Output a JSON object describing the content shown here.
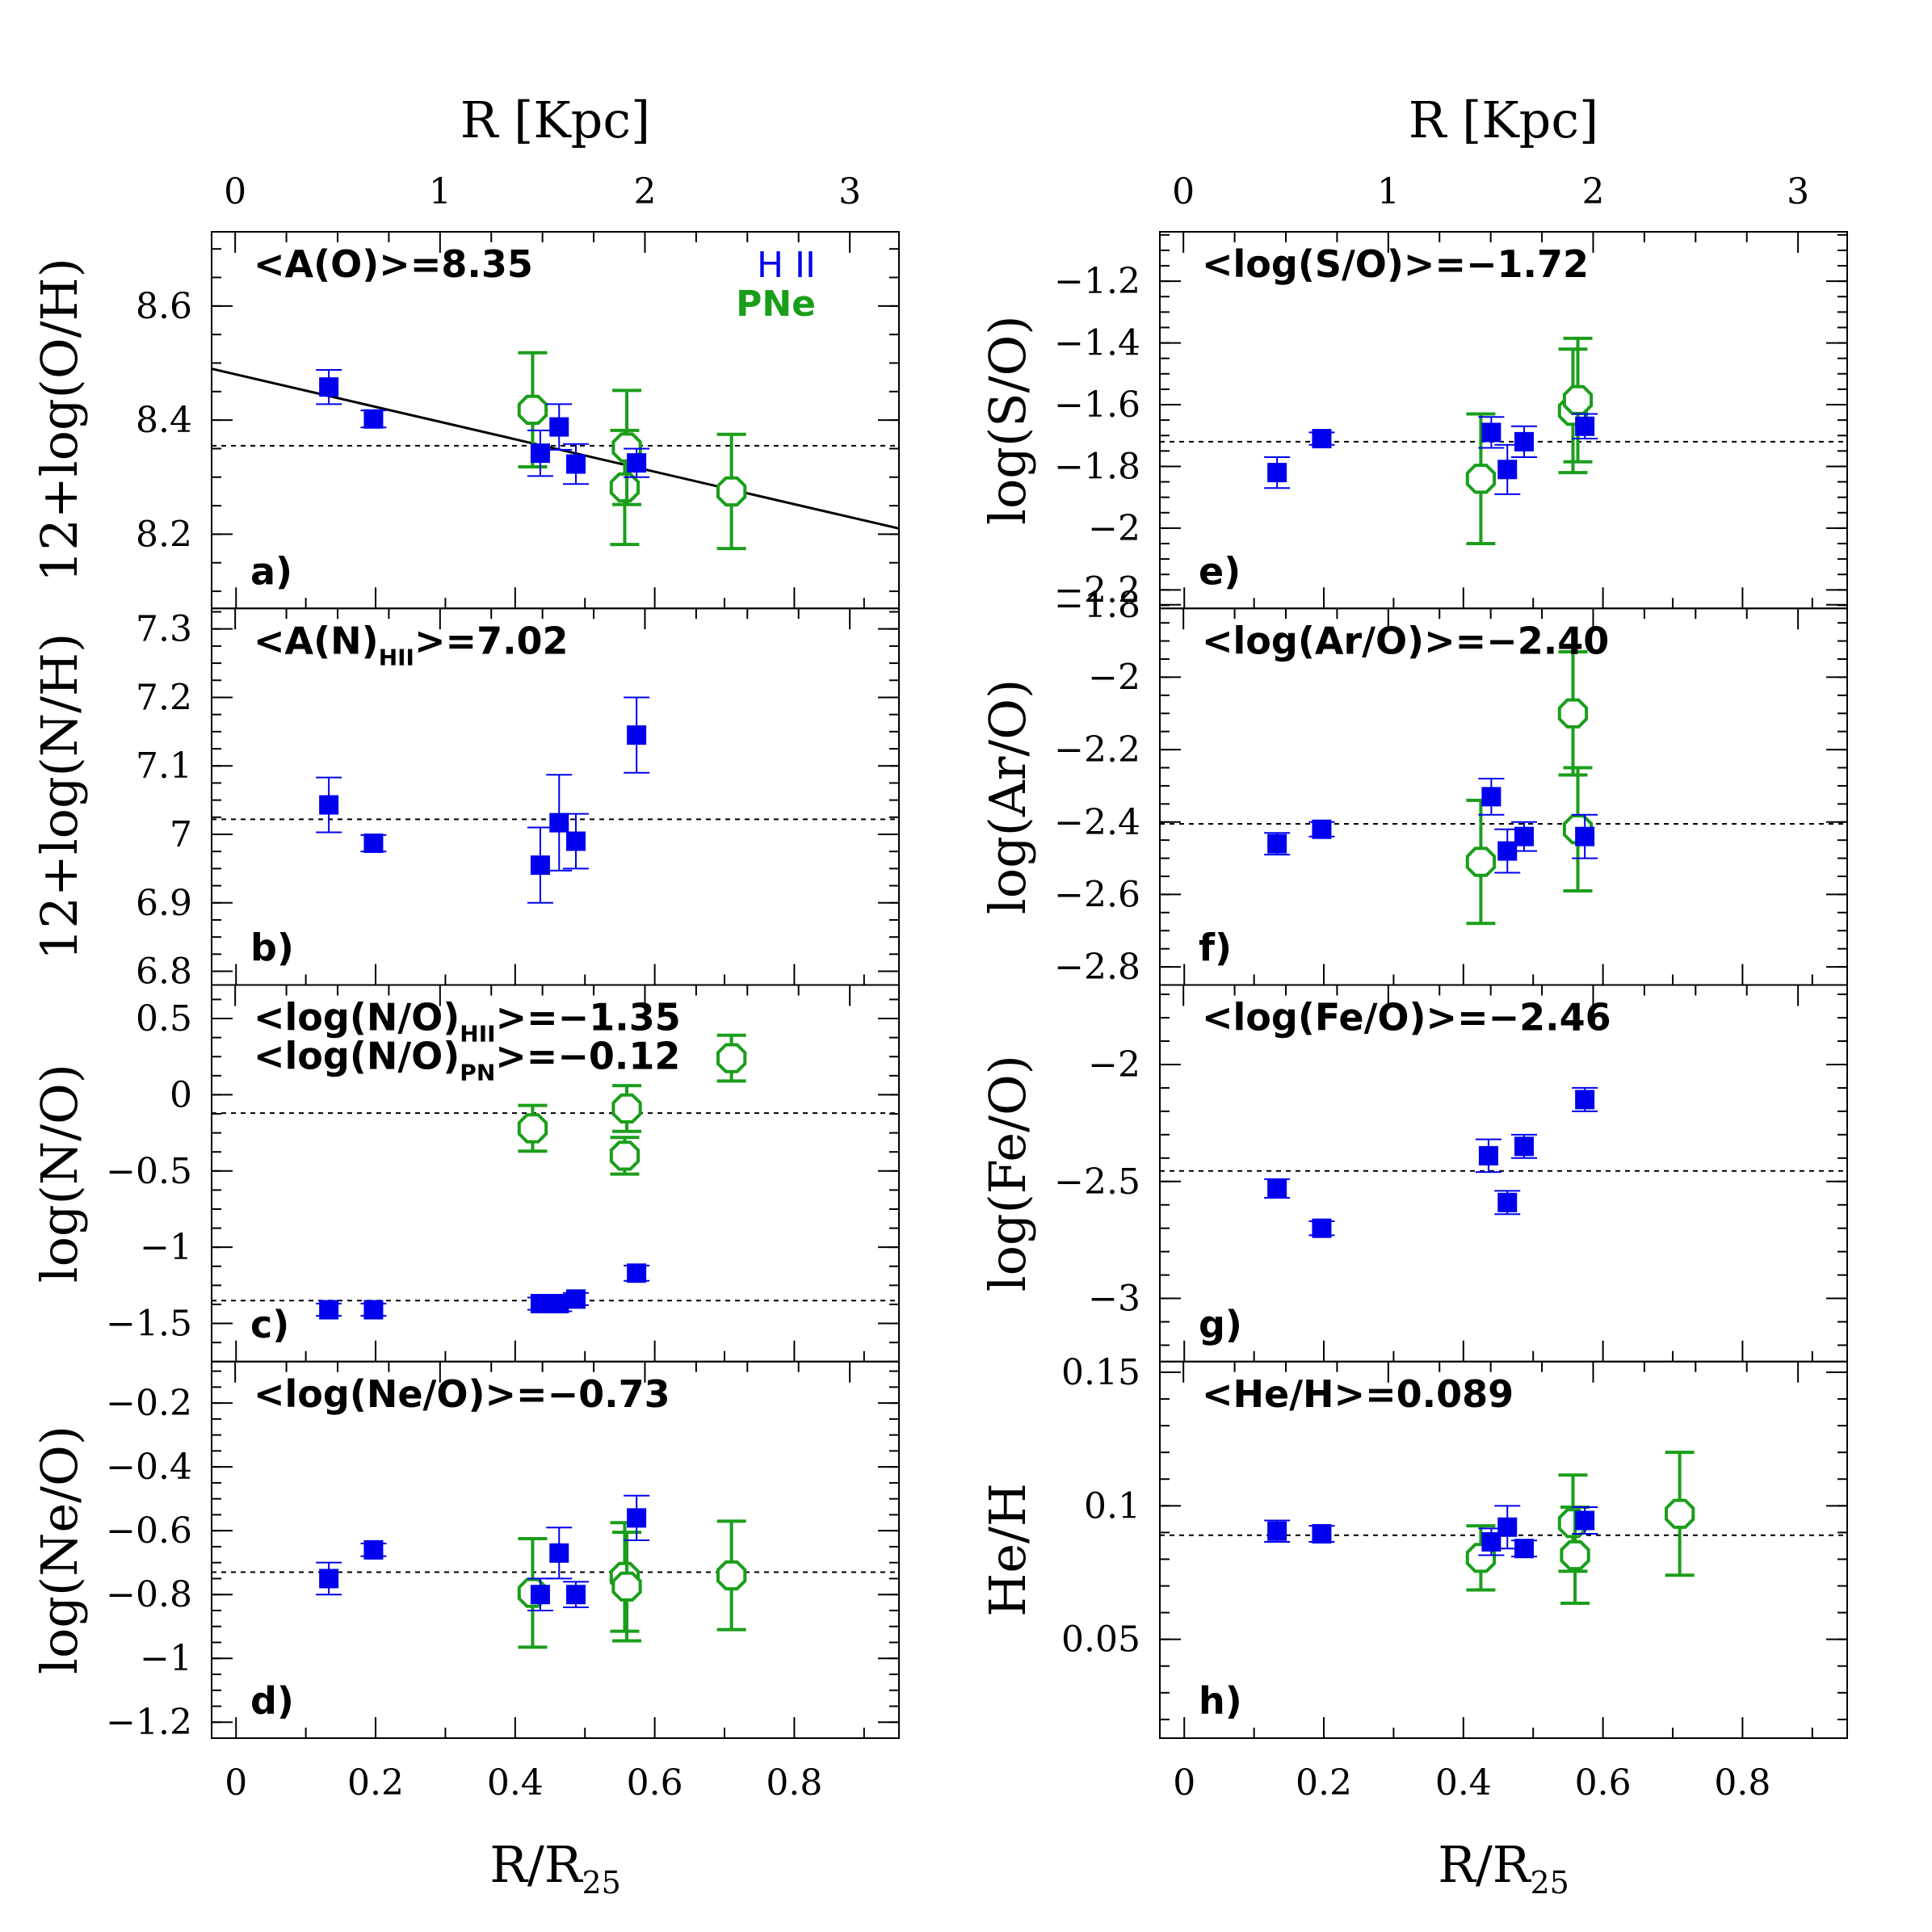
{
  "colors": {
    "hii": "#0000ee",
    "pne": "#1a9e1a",
    "axis": "#000000"
  },
  "chart_data": {
    "type": "scatter",
    "columns": [
      {
        "id": "left",
        "top_axis": {
          "title": "R [Kpc]",
          "ticks": [
            "0",
            "1",
            "2",
            "3"
          ],
          "values": [
            0,
            1,
            2,
            3
          ],
          "xlim": [
            -0.115,
            3.24
          ]
        },
        "bottom_axis": {
          "title_main": "R/R",
          "title_sub": "25",
          "ticks": [
            "0",
            "0.2",
            "0.4",
            "0.6",
            "0.8"
          ],
          "values": [
            0,
            0.2,
            0.4,
            0.6,
            0.8
          ],
          "xlim": [
            -0.035,
            0.95
          ]
        },
        "panels": [
          {
            "id": "a",
            "letter": "a)",
            "ylabel": "12+log(O/H)",
            "ylim": [
              8.07,
              8.73
            ],
            "ticks": [
              "8.2",
              "8.4",
              "8.6"
            ],
            "tick_values": [
              8.2,
              8.4,
              8.6
            ],
            "minor_step": 0.05,
            "annotation": {
              "lines": [
                {
                  "main": "<A(O)>=8.35"
                }
              ]
            },
            "legend": {
              "hii": "H II",
              "pne": "PNe"
            },
            "ref_lines": [
              8.355
            ],
            "fit_line": {
              "x": [
                -0.035,
                0.95
              ],
              "y": [
                8.49,
                8.21
              ]
            },
            "hii": [
              {
                "x": 0.133,
                "y": 8.458,
                "err": 0.03
              },
              {
                "x": 0.197,
                "y": 8.402,
                "err": 0.015
              },
              {
                "x": 0.436,
                "y": 8.342,
                "err": 0.04
              },
              {
                "x": 0.463,
                "y": 8.388,
                "err": 0.04
              },
              {
                "x": 0.487,
                "y": 8.323,
                "err": 0.035
              },
              {
                "x": 0.574,
                "y": 8.325,
                "err": 0.025
              }
            ],
            "pne": [
              {
                "x": 0.425,
                "y": 8.418,
                "err": 0.1
              },
              {
                "x": 0.557,
                "y": 8.282,
                "err": 0.1
              },
              {
                "x": 0.56,
                "y": 8.352,
                "err": 0.1
              },
              {
                "x": 0.71,
                "y": 8.275,
                "err": 0.1
              }
            ]
          },
          {
            "id": "b",
            "letter": "b)",
            "ylabel": "12+log(N/H)",
            "ylim": [
              6.78,
              7.33
            ],
            "ticks": [
              "6.8",
              "6.9",
              "7",
              "7.1",
              "7.2",
              "7.3"
            ],
            "tick_values": [
              6.8,
              6.9,
              7.0,
              7.1,
              7.2,
              7.3
            ],
            "minor_step": 0.025,
            "annotation": {
              "lines": [
                {
                  "main": "<A(N)",
                  "sub": "HII",
                  "rest": ">=7.02"
                }
              ]
            },
            "ref_lines": [
              7.022
            ],
            "hii": [
              {
                "x": 0.133,
                "y": 7.043,
                "err": 0.04
              },
              {
                "x": 0.197,
                "y": 6.987,
                "err": 0.012
              },
              {
                "x": 0.436,
                "y": 6.955,
                "err": 0.055
              },
              {
                "x": 0.463,
                "y": 7.017,
                "err": 0.07
              },
              {
                "x": 0.487,
                "y": 6.99,
                "err": 0.04
              },
              {
                "x": 0.574,
                "y": 7.145,
                "err": 0.055
              }
            ],
            "pne": []
          },
          {
            "id": "c",
            "letter": "c)",
            "ylabel": "log(N/O)",
            "ylim": [
              -1.75,
              0.72
            ],
            "ticks": [
              "−1.5",
              "−1",
              "−0.5",
              "0",
              "0.5"
            ],
            "tick_values": [
              -1.5,
              -1.0,
              -0.5,
              0.0,
              0.5
            ],
            "minor_step": 0.125,
            "annotation": {
              "lines": [
                {
                  "main": "<log(N/O)",
                  "sub": "HII",
                  "rest": ">=−1.35"
                },
                {
                  "main": "<log(N/O)",
                  "sub": "PN",
                  "rest": ">=−0.12"
                }
              ]
            },
            "ref_lines": [
              -1.35,
              -0.12
            ],
            "hii": [
              {
                "x": 0.133,
                "y": -1.41,
                "err": 0.04
              },
              {
                "x": 0.197,
                "y": -1.41,
                "err": 0.04
              },
              {
                "x": 0.436,
                "y": -1.37,
                "err": 0.04
              },
              {
                "x": 0.463,
                "y": -1.37,
                "err": 0.05
              },
              {
                "x": 0.487,
                "y": -1.34,
                "err": 0.04
              },
              {
                "x": 0.574,
                "y": -1.17,
                "err": 0.05
              }
            ],
            "pne": [
              {
                "x": 0.425,
                "y": -0.22,
                "err": 0.15
              },
              {
                "x": 0.557,
                "y": -0.4,
                "err": 0.12
              },
              {
                "x": 0.56,
                "y": -0.09,
                "err": 0.15
              },
              {
                "x": 0.71,
                "y": 0.24,
                "err": 0.15
              }
            ]
          },
          {
            "id": "d",
            "letter": "d)",
            "ylabel": "log(Ne/O)",
            "ylim": [
              -1.25,
              -0.07
            ],
            "ticks": [
              "−1.2",
              "−1",
              "−0.8",
              "−0.6",
              "−0.4",
              "−0.2"
            ],
            "tick_values": [
              -1.2,
              -1.0,
              -0.8,
              -0.6,
              -0.4,
              -0.2
            ],
            "minor_step": 0.05,
            "annotation": {
              "lines": [
                {
                  "main": "<log(Ne/O)>=−0.73"
                }
              ]
            },
            "ref_lines": [
              -0.73
            ],
            "hii": [
              {
                "x": 0.133,
                "y": -0.75,
                "err": 0.05
              },
              {
                "x": 0.197,
                "y": -0.66,
                "err": 0.02
              },
              {
                "x": 0.436,
                "y": -0.8,
                "err": 0.05
              },
              {
                "x": 0.463,
                "y": -0.67,
                "err": 0.08
              },
              {
                "x": 0.487,
                "y": -0.8,
                "err": 0.04
              },
              {
                "x": 0.574,
                "y": -0.56,
                "err": 0.07
              }
            ],
            "pne": [
              {
                "x": 0.425,
                "y": -0.795,
                "err": 0.17
              },
              {
                "x": 0.557,
                "y": -0.745,
                "err": 0.17
              },
              {
                "x": 0.56,
                "y": -0.775,
                "err": 0.17
              },
              {
                "x": 0.71,
                "y": -0.74,
                "err": 0.17
              }
            ]
          }
        ]
      },
      {
        "id": "right",
        "top_axis": {
          "title": "R [Kpc]",
          "ticks": [
            "0",
            "1",
            "2",
            "3"
          ],
          "values": [
            0,
            1,
            2,
            3
          ],
          "xlim": [
            -0.115,
            3.24
          ]
        },
        "bottom_axis": {
          "title_main": "R/R",
          "title_sub": "25",
          "ticks": [
            "0",
            "0.2",
            "0.4",
            "0.6",
            "0.8"
          ],
          "values": [
            0,
            0.2,
            0.4,
            0.6,
            0.8
          ],
          "xlim": [
            -0.035,
            0.95
          ]
        },
        "panels": [
          {
            "id": "e",
            "letter": "e)",
            "ylabel": "log(S/O)",
            "ylim": [
              -2.26,
              -1.04
            ],
            "ticks": [
              "−2.2",
              "−2",
              "−1.8",
              "−1.6",
              "−1.4",
              "−1.2"
            ],
            "tick_values": [
              -2.2,
              -2.0,
              -1.8,
              -1.6,
              -1.4,
              -1.2
            ],
            "minor_step": 0.05,
            "annotation": {
              "lines": [
                {
                  "main": "<log(S/O)>=−1.72"
                }
              ]
            },
            "ref_lines": [
              -1.72
            ],
            "hii": [
              {
                "x": 0.133,
                "y": -1.82,
                "err": 0.05
              },
              {
                "x": 0.197,
                "y": -1.71,
                "err": 0.02
              },
              {
                "x": 0.44,
                "y": -1.69,
                "err": 0.05
              },
              {
                "x": 0.463,
                "y": -1.81,
                "err": 0.08
              },
              {
                "x": 0.487,
                "y": -1.72,
                "err": 0.05
              },
              {
                "x": 0.574,
                "y": -1.67,
                "err": 0.04
              }
            ],
            "pne": [
              {
                "x": 0.425,
                "y": -1.84,
                "err": 0.21
              },
              {
                "x": 0.557,
                "y": -1.62,
                "err": 0.2
              },
              {
                "x": 0.564,
                "y": -1.585,
                "err": 0.2
              }
            ]
          },
          {
            "id": "f",
            "letter": "f)",
            "ylabel": "log(Ar/O)",
            "ylim": [
              -2.85,
              -1.81
            ],
            "ticks": [
              "−2.8",
              "−2.6",
              "−2.4",
              "−2.2",
              "−2",
              "−1.8"
            ],
            "tick_values": [
              -2.8,
              -2.6,
              -2.4,
              -2.2,
              -2.0,
              -1.8
            ],
            "minor_step": 0.05,
            "annotation": {
              "lines": [
                {
                  "main": "<log(Ar/O)>=−2.40"
                }
              ]
            },
            "ref_lines": [
              -2.405
            ],
            "hii": [
              {
                "x": 0.133,
                "y": -2.46,
                "err": 0.03
              },
              {
                "x": 0.197,
                "y": -2.42,
                "err": 0.02
              },
              {
                "x": 0.44,
                "y": -2.33,
                "err": 0.05
              },
              {
                "x": 0.463,
                "y": -2.48,
                "err": 0.06
              },
              {
                "x": 0.487,
                "y": -2.44,
                "err": 0.04
              },
              {
                "x": 0.574,
                "y": -2.44,
                "err": 0.06
              }
            ],
            "pne": [
              {
                "x": 0.425,
                "y": -2.51,
                "err": 0.17
              },
              {
                "x": 0.557,
                "y": -2.1,
                "err": 0.17
              },
              {
                "x": 0.564,
                "y": -2.42,
                "err": 0.17
              }
            ]
          },
          {
            "id": "g",
            "letter": "g)",
            "ylabel": "log(Fe/O)",
            "ylim": [
              -3.27,
              -1.66
            ],
            "ticks": [
              "−3",
              "−2.5",
              "−2"
            ],
            "tick_values": [
              -3.0,
              -2.5,
              -2.0
            ],
            "minor_step": 0.1,
            "annotation": {
              "lines": [
                {
                  "main": "<log(Fe/O)>=−2.46"
                }
              ]
            },
            "ref_lines": [
              -2.455
            ],
            "hii": [
              {
                "x": 0.133,
                "y": -2.53,
                "err": 0.04
              },
              {
                "x": 0.197,
                "y": -2.7,
                "err": 0.03
              },
              {
                "x": 0.436,
                "y": -2.39,
                "err": 0.07
              },
              {
                "x": 0.463,
                "y": -2.59,
                "err": 0.05
              },
              {
                "x": 0.487,
                "y": -2.35,
                "err": 0.05
              },
              {
                "x": 0.574,
                "y": -2.15,
                "err": 0.05
              }
            ],
            "pne": []
          },
          {
            "id": "h",
            "letter": "h)",
            "ylabel": "He/H",
            "ylim": [
              0.013,
              0.154
            ],
            "ticks": [
              "0.05",
              "0.1",
              "0.15"
            ],
            "tick_values": [
              0.05,
              0.1,
              0.15
            ],
            "minor_step": 0.01,
            "annotation": {
              "lines": [
                {
                  "main": "<He/H>=0.089"
                }
              ]
            },
            "ref_lines": [
              0.089
            ],
            "hii": [
              {
                "x": 0.133,
                "y": 0.0905,
                "err": 0.004
              },
              {
                "x": 0.197,
                "y": 0.0895,
                "err": 0.003
              },
              {
                "x": 0.44,
                "y": 0.0865,
                "err": 0.005
              },
              {
                "x": 0.463,
                "y": 0.092,
                "err": 0.008
              },
              {
                "x": 0.487,
                "y": 0.084,
                "err": 0.003
              },
              {
                "x": 0.574,
                "y": 0.0945,
                "err": 0.005
              }
            ],
            "pne": [
              {
                "x": 0.425,
                "y": 0.0805,
                "err": 0.012
              },
              {
                "x": 0.557,
                "y": 0.0935,
                "err": 0.018
              },
              {
                "x": 0.56,
                "y": 0.0815,
                "err": 0.018
              },
              {
                "x": 0.71,
                "y": 0.097,
                "err": 0.023
              }
            ]
          }
        ]
      }
    ]
  }
}
